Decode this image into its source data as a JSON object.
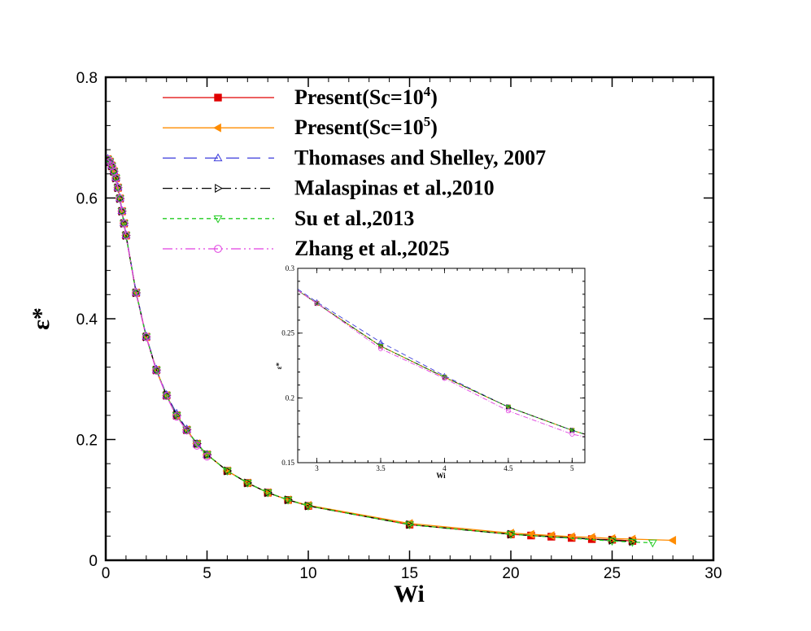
{
  "chart_data": [
    {
      "name": "main",
      "type": "line",
      "xlabel": "Wi",
      "ylabel": "ε*",
      "xlim": [
        0,
        30
      ],
      "ylim": [
        0,
        0.8
      ],
      "xticks": [
        0,
        5,
        10,
        15,
        20,
        25,
        30
      ],
      "yticks": [
        0,
        0.2,
        0.4,
        0.6,
        0.8
      ],
      "xtick_labels": [
        "0",
        "5",
        "10",
        "15",
        "20",
        "25",
        "30"
      ],
      "ytick_labels": [
        "0",
        "0.2",
        "0.4",
        "0.6",
        "0.8"
      ],
      "legend_position": "top-left",
      "series": [
        {
          "id": "present-sc1e4",
          "name": "Present(Sc=10",
          "sup": "4",
          "name_end": ")",
          "color": "#e00000",
          "dash": "",
          "marker": "square",
          "marker_fill": "#e00000",
          "x": [
            0.1,
            0.2,
            0.3,
            0.4,
            0.5,
            0.6,
            0.7,
            0.8,
            0.9,
            1,
            1.5,
            2,
            2.5,
            3,
            3.5,
            4,
            4.5,
            5,
            6,
            7,
            8,
            9,
            10,
            15,
            20,
            21,
            22,
            23,
            24,
            25,
            26
          ],
          "y": [
            0.664,
            0.66,
            0.653,
            0.644,
            0.633,
            0.617,
            0.599,
            0.578,
            0.558,
            0.538,
            0.443,
            0.37,
            0.315,
            0.273,
            0.24,
            0.216,
            0.193,
            0.175,
            0.148,
            0.128,
            0.112,
            0.1,
            0.09,
            0.059,
            0.043,
            0.041,
            0.039,
            0.037,
            0.035,
            0.034,
            0.032
          ]
        },
        {
          "id": "present-sc1e5",
          "name": "Present(Sc=10",
          "sup": "5",
          "name_end": ")",
          "color": "#ff8c00",
          "dash": "",
          "marker": "triangle-left",
          "marker_fill": "#ff8c00",
          "x": [
            0.1,
            0.2,
            0.3,
            0.4,
            0.5,
            0.6,
            0.7,
            0.8,
            0.9,
            1,
            1.5,
            2,
            2.5,
            3,
            3.5,
            4,
            4.5,
            5,
            6,
            7,
            8,
            9,
            10,
            15,
            20,
            21,
            22,
            23,
            24,
            25,
            26,
            28
          ],
          "y": [
            0.664,
            0.66,
            0.653,
            0.644,
            0.633,
            0.617,
            0.599,
            0.578,
            0.558,
            0.538,
            0.443,
            0.37,
            0.315,
            0.273,
            0.24,
            0.216,
            0.193,
            0.175,
            0.148,
            0.128,
            0.112,
            0.1,
            0.091,
            0.061,
            0.045,
            0.043,
            0.041,
            0.039,
            0.038,
            0.036,
            0.035,
            0.033
          ]
        },
        {
          "id": "thomases-shelley",
          "name": "Thomases and Shelley, 2007",
          "sup": "",
          "name_end": "",
          "color": "#3c3cdc",
          "dash": "16,10",
          "marker": "triangle-up",
          "marker_fill": "none",
          "x": [
            0.1,
            0.2,
            0.3,
            0.4,
            0.5,
            0.6,
            0.7,
            0.8,
            0.9,
            1,
            1.5,
            2,
            2.5,
            3,
            3.5,
            4,
            4.5,
            5
          ],
          "y": [
            0.665,
            0.661,
            0.654,
            0.645,
            0.634,
            0.618,
            0.6,
            0.579,
            0.559,
            0.539,
            0.444,
            0.371,
            0.316,
            0.274,
            0.243,
            0.217,
            0.193,
            0.175
          ]
        },
        {
          "id": "malaspinas",
          "name": "Malaspinas et al.,2010",
          "sup": "",
          "name_end": "",
          "color": "#000000",
          "dash": "12,5,2,5",
          "marker": "triangle-right",
          "marker_fill": "none",
          "x": [
            0.1,
            0.2,
            0.3,
            0.4,
            0.5,
            0.6,
            0.7,
            0.8,
            0.9,
            1,
            1.5,
            2,
            2.5,
            3,
            3.5,
            4,
            4.5,
            5,
            6,
            7,
            8,
            9,
            10,
            15,
            20,
            25,
            26
          ],
          "y": [
            0.664,
            0.66,
            0.653,
            0.644,
            0.633,
            0.617,
            0.599,
            0.578,
            0.558,
            0.538,
            0.443,
            0.37,
            0.315,
            0.273,
            0.24,
            0.216,
            0.193,
            0.175,
            0.148,
            0.128,
            0.112,
            0.1,
            0.09,
            0.059,
            0.043,
            0.033,
            0.031
          ]
        },
        {
          "id": "su",
          "name": "Su et al.,2013",
          "sup": "",
          "name_end": "",
          "color": "#22cc22",
          "dash": "5,4",
          "marker": "triangle-down",
          "marker_fill": "none",
          "x": [
            0.1,
            0.2,
            0.3,
            0.4,
            0.5,
            0.6,
            0.7,
            0.8,
            0.9,
            1,
            1.5,
            2,
            2.5,
            3,
            3.5,
            4,
            4.5,
            5,
            6,
            7,
            8,
            9,
            10,
            15,
            20,
            25,
            26,
            27
          ],
          "y": [
            0.664,
            0.66,
            0.653,
            0.644,
            0.633,
            0.617,
            0.599,
            0.578,
            0.558,
            0.538,
            0.443,
            0.37,
            0.315,
            0.273,
            0.24,
            0.216,
            0.193,
            0.175,
            0.148,
            0.128,
            0.112,
            0.1,
            0.09,
            0.059,
            0.043,
            0.032,
            0.03,
            0.029
          ]
        },
        {
          "id": "zhang",
          "name": "Zhang et al.,2025",
          "sup": "",
          "name_end": "",
          "color": "#e040e0",
          "dash": "12,4,2,4,2,4",
          "marker": "circle",
          "marker_fill": "none",
          "x": [
            0.1,
            0.2,
            0.3,
            0.4,
            0.5,
            0.6,
            0.7,
            0.8,
            0.9,
            1,
            1.5,
            2,
            2.5,
            3,
            3.5,
            4,
            4.5,
            5
          ],
          "y": [
            0.664,
            0.66,
            0.653,
            0.644,
            0.633,
            0.617,
            0.599,
            0.578,
            0.558,
            0.538,
            0.443,
            0.37,
            0.314,
            0.272,
            0.238,
            0.215,
            0.19,
            0.172
          ]
        }
      ]
    },
    {
      "name": "inset",
      "type": "line",
      "xlabel": "Wi",
      "ylabel": "ε*",
      "xlim": [
        2.85,
        5.1
      ],
      "ylim": [
        0.15,
        0.3
      ],
      "xticks": [
        3,
        3.5,
        4,
        4.5,
        5
      ],
      "yticks": [
        0.15,
        0.2,
        0.25,
        0.3
      ],
      "xtick_labels": [
        "3",
        "3.5",
        "4",
        "4.5",
        "5"
      ],
      "ytick_labels": [
        "0.15",
        "0.2",
        "0.25",
        "0.3"
      ],
      "series": [
        {
          "id": "present-sc1e4",
          "color": "#e00000",
          "dash": "",
          "marker": "square",
          "marker_fill": "#e00000",
          "x": [
            2.85,
            3,
            3.5,
            4,
            4.5,
            5,
            5.1
          ],
          "y": [
            0.283,
            0.273,
            0.24,
            0.216,
            0.193,
            0.175,
            0.172
          ]
        },
        {
          "id": "present-sc1e5",
          "color": "#ff8c00",
          "dash": "",
          "marker": "triangle-left",
          "marker_fill": "#ff8c00",
          "x": [
            2.85,
            3,
            3.5,
            4,
            4.5,
            5,
            5.1
          ],
          "y": [
            0.283,
            0.273,
            0.24,
            0.216,
            0.193,
            0.175,
            0.172
          ]
        },
        {
          "id": "thomases-shelley",
          "color": "#3c3cdc",
          "dash": "6,4",
          "marker": "triangle-up",
          "marker_fill": "none",
          "x": [
            2.85,
            3,
            3.5,
            4,
            4.5,
            5,
            5.1
          ],
          "y": [
            0.284,
            0.274,
            0.243,
            0.217,
            0.193,
            0.175,
            0.172
          ]
        },
        {
          "id": "malaspinas",
          "color": "#000000",
          "dash": "6,3,1,3",
          "marker": "triangle-right",
          "marker_fill": "none",
          "x": [
            2.85,
            3,
            3.5,
            4,
            4.5,
            5,
            5.1
          ],
          "y": [
            0.283,
            0.273,
            0.24,
            0.216,
            0.193,
            0.175,
            0.172
          ]
        },
        {
          "id": "su",
          "color": "#22cc22",
          "dash": "3,3",
          "marker": "triangle-down",
          "marker_fill": "none",
          "x": [
            2.85,
            3,
            3.5,
            4,
            4.5,
            5,
            5.1
          ],
          "y": [
            0.283,
            0.273,
            0.24,
            0.216,
            0.193,
            0.175,
            0.172
          ]
        },
        {
          "id": "zhang",
          "color": "#e040e0",
          "dash": "6,2,1,2",
          "marker": "circle",
          "marker_fill": "none",
          "x": [
            2.85,
            3,
            3.5,
            4,
            4.5,
            5,
            5.1
          ],
          "y": [
            0.283,
            0.273,
            0.238,
            0.215,
            0.19,
            0.172,
            0.17
          ]
        }
      ]
    }
  ]
}
